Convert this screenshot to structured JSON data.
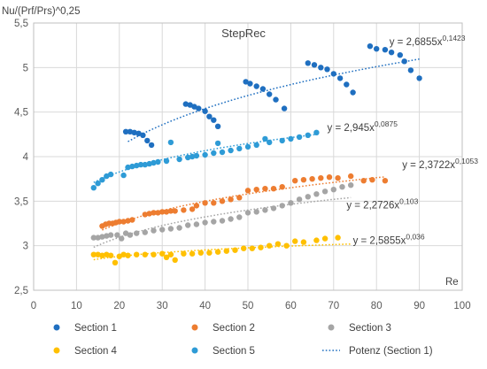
{
  "chart_data": {
    "type": "scatter",
    "title": "StepRec",
    "ylabel": "Nu/(Prf/Prs)^0,25",
    "xlabel": "Re",
    "xlim": [
      0,
      100
    ],
    "ylim": [
      2.5,
      5.5
    ],
    "x_ticks": [
      "0",
      "10",
      "20",
      "30",
      "40",
      "50",
      "60",
      "70",
      "80",
      "90",
      "100"
    ],
    "y_ticks": [
      "2,5",
      "3",
      "3,5",
      "4",
      "4,5",
      "5",
      "5,5"
    ],
    "grid": true,
    "legend_position": "bottom",
    "series": [
      {
        "name": "Section 1",
        "color": "#1f6fc0",
        "points": [
          [
            21.5,
            4.28
          ],
          [
            22.5,
            4.28
          ],
          [
            23.5,
            4.27
          ],
          [
            24.5,
            4.26
          ],
          [
            25.5,
            4.24
          ],
          [
            26.5,
            4.18
          ],
          [
            27.5,
            4.13
          ],
          [
            35.5,
            4.59
          ],
          [
            36.5,
            4.58
          ],
          [
            37.5,
            4.56
          ],
          [
            38.5,
            4.54
          ],
          [
            40,
            4.51
          ],
          [
            41,
            4.45
          ],
          [
            42,
            4.41
          ],
          [
            43,
            4.34
          ],
          [
            49.5,
            4.84
          ],
          [
            50.5,
            4.82
          ],
          [
            52,
            4.79
          ],
          [
            53.5,
            4.76
          ],
          [
            55,
            4.7
          ],
          [
            56.5,
            4.64
          ],
          [
            58.5,
            4.54
          ],
          [
            64,
            5.05
          ],
          [
            65.5,
            5.03
          ],
          [
            67,
            5.0
          ],
          [
            68.5,
            4.98
          ],
          [
            70,
            4.93
          ],
          [
            71.5,
            4.88
          ],
          [
            73,
            4.81
          ],
          [
            74.5,
            4.72
          ],
          [
            78.5,
            5.24
          ],
          [
            80,
            5.21
          ],
          [
            82,
            5.2
          ],
          [
            83.5,
            5.17
          ],
          [
            85.5,
            5.14
          ],
          [
            86.5,
            5.07
          ],
          [
            88,
            4.97
          ],
          [
            90,
            4.88
          ]
        ]
      },
      {
        "name": "Section 2",
        "color": "#ed7d31",
        "points": [
          [
            16,
            3.22
          ],
          [
            16.8,
            3.24
          ],
          [
            17.6,
            3.25
          ],
          [
            18.4,
            3.25
          ],
          [
            19.2,
            3.26
          ],
          [
            20,
            3.27
          ],
          [
            21,
            3.27
          ],
          [
            22,
            3.28
          ],
          [
            23,
            3.29
          ],
          [
            26,
            3.35
          ],
          [
            27,
            3.36
          ],
          [
            28,
            3.37
          ],
          [
            29,
            3.37
          ],
          [
            30,
            3.38
          ],
          [
            31,
            3.38
          ],
          [
            32,
            3.39
          ],
          [
            33,
            3.39
          ],
          [
            35,
            3.4
          ],
          [
            37,
            3.41
          ],
          [
            38,
            3.45
          ],
          [
            40,
            3.48
          ],
          [
            42,
            3.48
          ],
          [
            44,
            3.5
          ],
          [
            46,
            3.52
          ],
          [
            48,
            3.54
          ],
          [
            50,
            3.62
          ],
          [
            52,
            3.63
          ],
          [
            54,
            3.64
          ],
          [
            56,
            3.64
          ],
          [
            58,
            3.66
          ],
          [
            61,
            3.73
          ],
          [
            63,
            3.74
          ],
          [
            65,
            3.75
          ],
          [
            67,
            3.76
          ],
          [
            69,
            3.77
          ],
          [
            71,
            3.76
          ],
          [
            74,
            3.78
          ],
          [
            77,
            3.73
          ],
          [
            79,
            3.74
          ],
          [
            82,
            3.73
          ]
        ]
      },
      {
        "name": "Section 3",
        "color": "#a5a5a5",
        "points": [
          [
            14,
            3.09
          ],
          [
            15,
            3.09
          ],
          [
            16,
            3.1
          ],
          [
            17,
            3.11
          ],
          [
            18,
            3.12
          ],
          [
            19.5,
            3.12
          ],
          [
            20.5,
            3.08
          ],
          [
            21.5,
            3.14
          ],
          [
            22.5,
            3.12
          ],
          [
            24,
            3.14
          ],
          [
            26,
            3.15
          ],
          [
            28,
            3.17
          ],
          [
            30,
            3.18
          ],
          [
            32,
            3.19
          ],
          [
            34,
            3.2
          ],
          [
            36,
            3.23
          ],
          [
            38,
            3.24
          ],
          [
            40,
            3.26
          ],
          [
            42,
            3.27
          ],
          [
            44,
            3.28
          ],
          [
            46,
            3.3
          ],
          [
            48,
            3.32
          ],
          [
            50,
            3.37
          ],
          [
            52,
            3.38
          ],
          [
            54,
            3.4
          ],
          [
            56,
            3.42
          ],
          [
            58,
            3.45
          ],
          [
            60,
            3.48
          ],
          [
            62,
            3.52
          ],
          [
            64,
            3.55
          ],
          [
            66,
            3.58
          ],
          [
            68,
            3.61
          ],
          [
            70,
            3.63
          ],
          [
            72,
            3.66
          ],
          [
            74,
            3.68
          ]
        ]
      },
      {
        "name": "Section 4",
        "color": "#ffc000",
        "points": [
          [
            14,
            2.9
          ],
          [
            15,
            2.9
          ],
          [
            16,
            2.89
          ],
          [
            17,
            2.9
          ],
          [
            18,
            2.89
          ],
          [
            19,
            2.81
          ],
          [
            20,
            2.88
          ],
          [
            21,
            2.9
          ],
          [
            22,
            2.89
          ],
          [
            24,
            2.9
          ],
          [
            26,
            2.9
          ],
          [
            28,
            2.9
          ],
          [
            30,
            2.91
          ],
          [
            31,
            2.87
          ],
          [
            32,
            2.9
          ],
          [
            33,
            2.84
          ],
          [
            35,
            2.91
          ],
          [
            37,
            2.91
          ],
          [
            39,
            2.92
          ],
          [
            41,
            2.92
          ],
          [
            43,
            2.93
          ],
          [
            45,
            2.94
          ],
          [
            47,
            2.95
          ],
          [
            49,
            2.97
          ],
          [
            51,
            2.97
          ],
          [
            53,
            2.98
          ],
          [
            55,
            3.0
          ],
          [
            57,
            3.02
          ],
          [
            59,
            3.0
          ],
          [
            61,
            3.05
          ],
          [
            63,
            3.04
          ],
          [
            66,
            3.06
          ],
          [
            68,
            3.08
          ],
          [
            71,
            3.09
          ]
        ]
      },
      {
        "name": "Section 5",
        "color": "#2e9bd6",
        "points": [
          [
            14,
            3.65
          ],
          [
            15,
            3.7
          ],
          [
            16,
            3.74
          ],
          [
            17,
            3.78
          ],
          [
            18,
            3.8
          ],
          [
            21,
            3.79
          ],
          [
            22,
            3.88
          ],
          [
            23,
            3.89
          ],
          [
            24,
            3.9
          ],
          [
            25,
            3.91
          ],
          [
            26,
            3.91
          ],
          [
            27,
            3.92
          ],
          [
            28,
            3.93
          ],
          [
            29,
            3.94
          ],
          [
            31,
            3.95
          ],
          [
            32,
            4.16
          ],
          [
            34,
            3.97
          ],
          [
            36,
            3.99
          ],
          [
            37,
            4.0
          ],
          [
            38,
            4.01
          ],
          [
            40,
            4.02
          ],
          [
            42,
            4.04
          ],
          [
            43,
            4.15
          ],
          [
            44,
            4.05
          ],
          [
            46,
            4.07
          ],
          [
            48,
            4.09
          ],
          [
            50,
            4.11
          ],
          [
            52,
            4.13
          ],
          [
            54,
            4.2
          ],
          [
            55,
            4.16
          ],
          [
            58,
            4.18
          ],
          [
            60,
            4.2
          ],
          [
            62,
            4.22
          ],
          [
            64,
            4.24
          ],
          [
            66,
            4.27
          ]
        ]
      }
    ],
    "trendlines": [
      {
        "name": "Potenz (Section 1)",
        "series": "Section 1",
        "a": 2.6855,
        "b": 0.1423,
        "x_range": [
          22,
          90
        ],
        "color": "#1f6fc0",
        "label_base": "y = 2,6855x",
        "label_exp": "0,1423",
        "label_at": [
          83,
          5.25
        ]
      },
      {
        "series": "Section 5",
        "a": 2.945,
        "b": 0.0875,
        "x_range": [
          14,
          66
        ],
        "color": "#2e9bd6",
        "label_base": "y = 2,945x",
        "label_exp": "0,0875",
        "label_at": [
          68.5,
          4.29
        ]
      },
      {
        "series": "Section 2",
        "a": 2.3722,
        "b": 0.1053,
        "x_range": [
          16,
          82
        ],
        "color": "#ed7d31",
        "label_base": "y = 2,3722x",
        "label_exp": "0,1053",
        "label_at": [
          86,
          3.87
        ]
      },
      {
        "series": "Section 3",
        "a": 2.2726,
        "b": 0.103,
        "x_range": [
          14,
          74
        ],
        "color": "#a5a5a5",
        "label_base": "y = 2,2726x",
        "label_exp": "0,103",
        "label_at": [
          73,
          3.42
        ]
      },
      {
        "series": "Section 4",
        "a": 2.5855,
        "b": 0.036,
        "x_range": [
          14,
          74
        ],
        "color": "#ffc000",
        "label_base": "y = 2,5855x",
        "label_exp": "0,036",
        "label_at": [
          74.5,
          3.02
        ]
      }
    ],
    "legend": [
      {
        "label": "Section 1",
        "kind": "marker",
        "color": "#1f6fc0"
      },
      {
        "label": "Section 2",
        "kind": "marker",
        "color": "#ed7d31"
      },
      {
        "label": "Section 3",
        "kind": "marker",
        "color": "#a5a5a5"
      },
      {
        "label": "Section 4",
        "kind": "marker",
        "color": "#ffc000"
      },
      {
        "label": "Section 5",
        "kind": "marker",
        "color": "#2e9bd6"
      },
      {
        "label": "Potenz (Section 1)",
        "kind": "dotted-line",
        "color": "#1f6fc0"
      }
    ]
  }
}
